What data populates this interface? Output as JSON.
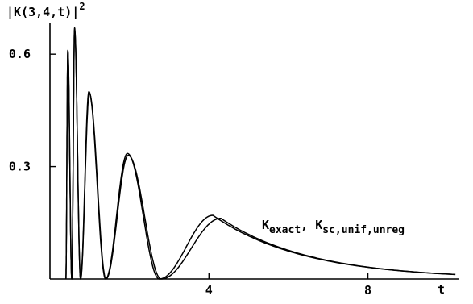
{
  "chart_data": {
    "type": "line",
    "ylabel": "|K(3,4,t)|",
    "ylabel_exponent": "2",
    "xlabel": "t",
    "xlim": [
      0,
      10.3
    ],
    "ylim": [
      0,
      0.68
    ],
    "x_ticks": [
      {
        "value": 4,
        "label": "4"
      },
      {
        "value": 8,
        "label": "8"
      }
    ],
    "y_ticks": [
      {
        "value": 0.3,
        "label": "0.3"
      },
      {
        "value": 0.6,
        "label": "0.6"
      }
    ],
    "legend": "top-right",
    "annotation": {
      "parts": [
        {
          "text": "K",
          "sub": "exact"
        },
        {
          "text": ",",
          "sub": ""
        },
        {
          "text": "K",
          "sub": "sc,unif,unreg"
        }
      ]
    },
    "series": [
      {
        "peaks": [
          {
            "x": 0.45,
            "y": 0.61
          },
          {
            "x": 0.62,
            "y": 0.67
          },
          {
            "x": 0.98,
            "y": 0.5
          },
          {
            "x": 1.95,
            "y": 0.335
          },
          {
            "x": 4.1,
            "y": 0.17
          }
        ],
        "zeros": [
          0.55,
          0.77,
          1.4,
          2.75
        ],
        "tail": {
          "x": 10.2,
          "y": 0.012
        },
        "start_x": 0.4
      },
      {
        "peaks": [
          {
            "x": 0.45,
            "y": 0.61
          },
          {
            "x": 0.62,
            "y": 0.665
          },
          {
            "x": 0.99,
            "y": 0.495
          },
          {
            "x": 1.97,
            "y": 0.33
          },
          {
            "x": 4.3,
            "y": 0.162
          }
        ],
        "zeros": [
          0.55,
          0.77,
          1.41,
          2.8
        ],
        "tail": {
          "x": 10.2,
          "y": 0.012
        },
        "start_x": 0.4
      }
    ]
  }
}
